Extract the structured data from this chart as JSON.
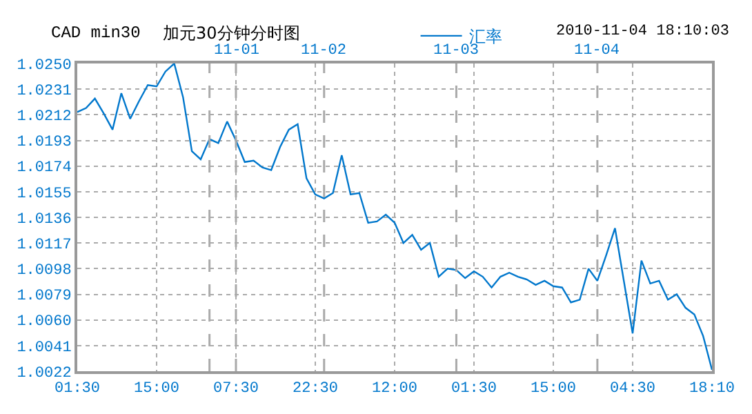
{
  "chart_data": {
    "type": "line",
    "title": "CAD min30",
    "subtitle": "加元30分钟分时图",
    "annotations": [
      "2010-11-04 18:10:03",
      "11-01",
      "11-02",
      "11-03",
      "11-04"
    ],
    "categories": [
      "01:30",
      null,
      null,
      null,
      null,
      null,
      null,
      null,
      null,
      "15:00",
      null,
      null,
      null,
      null,
      null,
      null,
      null,
      null,
      "07:30",
      null,
      null,
      null,
      null,
      null,
      null,
      null,
      null,
      "22:30",
      null,
      null,
      null,
      null,
      null,
      null,
      null,
      null,
      "12:00",
      null,
      null,
      null,
      null,
      null,
      null,
      null,
      null,
      "01:30",
      null,
      null,
      null,
      null,
      null,
      null,
      null,
      null,
      "15:00",
      null,
      null,
      null,
      null,
      null,
      null,
      null,
      null,
      "04:30",
      null,
      null,
      null,
      null,
      null,
      null,
      null,
      null,
      "18:10"
    ],
    "series": [
      {
        "name": "汇率",
        "color": "#0077cc",
        "values": [
          1.0214,
          1.0217,
          1.0224,
          1.0213,
          1.0201,
          1.0228,
          1.0209,
          1.0222,
          1.0234,
          1.0233,
          1.0244,
          1.025,
          1.0225,
          1.0185,
          1.0179,
          1.0194,
          1.0191,
          1.0207,
          1.0193,
          1.0177,
          1.0178,
          1.0173,
          1.0171,
          1.0188,
          1.0201,
          1.0205,
          1.0165,
          1.0153,
          1.015,
          1.0154,
          1.0182,
          1.0153,
          1.0154,
          1.0132,
          1.0133,
          1.0138,
          1.0132,
          1.0117,
          1.0123,
          1.0112,
          1.0117,
          1.0092,
          1.0098,
          1.0097,
          1.0091,
          1.0096,
          1.0092,
          1.0084,
          1.0092,
          1.0095,
          1.0092,
          1.009,
          1.0086,
          1.0089,
          1.0085,
          1.0084,
          1.0073,
          1.0075,
          1.0098,
          1.0089,
          1.0108,
          1.0128,
          1.0089,
          1.005,
          1.0104,
          1.0087,
          1.0089,
          1.0075,
          1.0079,
          1.0069,
          1.0064,
          1.0048,
          1.0023
        ]
      }
    ],
    "ylim": [
      1.0022,
      1.025
    ],
    "yticks": [
      {
        "value": 1.0022,
        "label": "1.0022"
      },
      {
        "value": 1.0041,
        "label": "1.0041"
      },
      {
        "value": 1.006,
        "label": "1.0060"
      },
      {
        "value": 1.0079,
        "label": "1.0079"
      },
      {
        "value": 1.0098,
        "label": "1.0098"
      },
      {
        "value": 1.0117,
        "label": "1.0117"
      },
      {
        "value": 1.0136,
        "label": "1.0136"
      },
      {
        "value": 1.0155,
        "label": "1.0155"
      },
      {
        "value": 1.0174,
        "label": "1.0174"
      },
      {
        "value": 1.0193,
        "label": "1.0193"
      },
      {
        "value": 1.0212,
        "label": "1.0212"
      },
      {
        "value": 1.0231,
        "label": "1.0231"
      },
      {
        "value": 1.025,
        "label": "1.0250"
      }
    ],
    "grid": true,
    "legend": "top",
    "marker": "none",
    "line_style": "solid"
  }
}
